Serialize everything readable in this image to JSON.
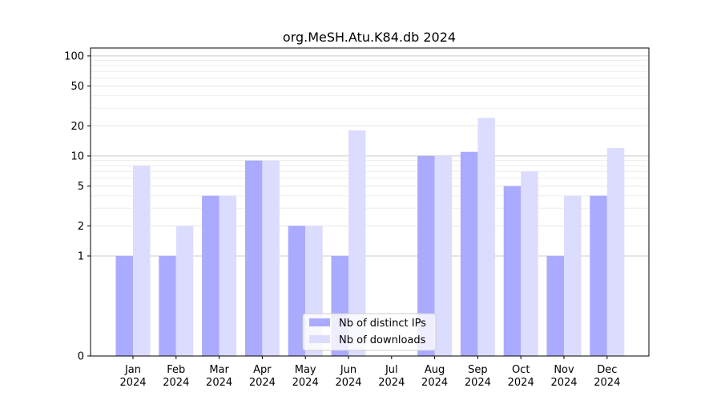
{
  "chart_data": {
    "type": "bar",
    "title": "org.MeSH.Atu.K84.db 2024",
    "xlabel": "",
    "ylabel": "",
    "y_scale": "symlog",
    "ylim": [
      0,
      120
    ],
    "y_ticks": [
      {
        "value": 0,
        "label": "0"
      },
      {
        "value": 1,
        "label": "1"
      },
      {
        "value": 2,
        "label": "2"
      },
      {
        "value": 5,
        "label": "5"
      },
      {
        "value": 10,
        "label": "10"
      },
      {
        "value": 20,
        "label": "20"
      },
      {
        "value": 50,
        "label": "50"
      },
      {
        "value": 100,
        "label": "100"
      }
    ],
    "grid": true,
    "legend_position": "bottom-center",
    "categories": [
      {
        "month": "Jan",
        "year": "2024"
      },
      {
        "month": "Feb",
        "year": "2024"
      },
      {
        "month": "Mar",
        "year": "2024"
      },
      {
        "month": "Apr",
        "year": "2024"
      },
      {
        "month": "May",
        "year": "2024"
      },
      {
        "month": "Jun",
        "year": "2024"
      },
      {
        "month": "Jul",
        "year": "2024"
      },
      {
        "month": "Aug",
        "year": "2024"
      },
      {
        "month": "Sep",
        "year": "2024"
      },
      {
        "month": "Oct",
        "year": "2024"
      },
      {
        "month": "Nov",
        "year": "2024"
      },
      {
        "month": "Dec",
        "year": "2024"
      }
    ],
    "series": [
      {
        "name": "Nb of distinct IPs",
        "color": "#aaaaff",
        "values": [
          1,
          1,
          4,
          9,
          2,
          1,
          0,
          10,
          11,
          5,
          1,
          4
        ]
      },
      {
        "name": "Nb of downloads",
        "color": "#dcdcff",
        "values": [
          8,
          2,
          4,
          9,
          2,
          18,
          0,
          10,
          24,
          7,
          4,
          12
        ]
      }
    ]
  }
}
